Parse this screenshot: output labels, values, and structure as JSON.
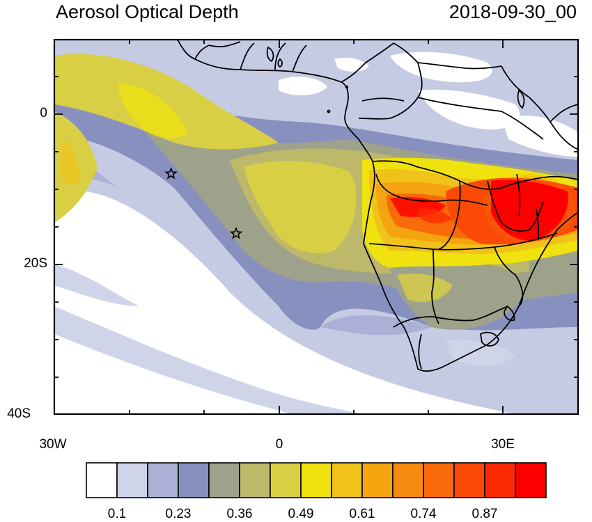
{
  "title": "Aerosol Optical Depth",
  "timestamp": "2018-09-30_00",
  "axes": {
    "lat_labels": [
      {
        "value": 0,
        "text": "0"
      },
      {
        "value": -20,
        "text": "20S"
      },
      {
        "value": -40,
        "text": "40S"
      }
    ],
    "lon_labels": [
      {
        "value": -30,
        "text": "30W"
      },
      {
        "value": 0,
        "text": "0"
      },
      {
        "value": 30,
        "text": "30E"
      }
    ],
    "lon_range": [
      -30,
      40
    ],
    "lat_range": [
      -40,
      10
    ]
  },
  "colorbar": {
    "colors": [
      "#ffffff",
      "#d0d4e8",
      "#aab0d6",
      "#8890bf",
      "#9fa28a",
      "#bdb86a",
      "#d8cf45",
      "#f0e20e",
      "#f0c21a",
      "#f4a40e",
      "#f68a0e",
      "#f86a0a",
      "#fa4a06",
      "#fc2a04",
      "#ff0000"
    ],
    "labels": [
      "0.1",
      "0.23",
      "0.36",
      "0.49",
      "0.61",
      "0.74",
      "0.87"
    ]
  },
  "markers": [
    {
      "name": "star-marker",
      "lon": -14.4,
      "lat": -7.9
    },
    {
      "name": "star-marker",
      "lon": -5.7,
      "lat": -15.9
    }
  ]
}
